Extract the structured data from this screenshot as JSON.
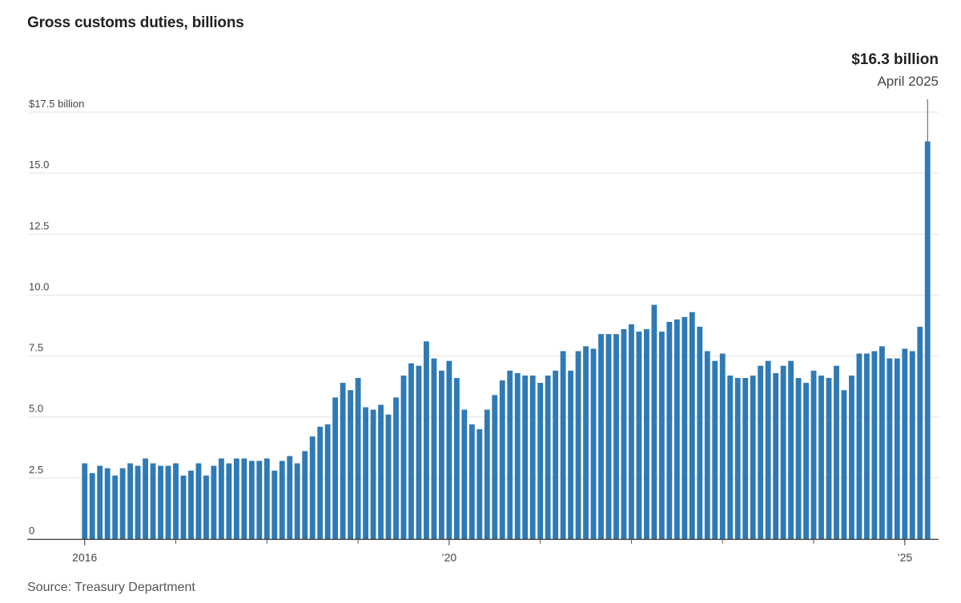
{
  "chart_data": {
    "type": "bar",
    "title": "Gross customs duties, billions",
    "source": "Source: Treasury Department",
    "color": "#2f7ab5",
    "start": "2016-01",
    "y_ticks": [
      {
        "value": 0,
        "label": "0"
      },
      {
        "value": 2.5,
        "label": "2.5"
      },
      {
        "value": 5.0,
        "label": "5.0"
      },
      {
        "value": 7.5,
        "label": "7.5"
      },
      {
        "value": 10.0,
        "label": "10.0"
      },
      {
        "value": 12.5,
        "label": "12.5"
      },
      {
        "value": 15.0,
        "label": "15.0"
      },
      {
        "value": 17.5,
        "label": "$17.5 billion"
      }
    ],
    "ylim": [
      0,
      17.5
    ],
    "x_ticks": [
      {
        "month": "2016-01",
        "label": "2016"
      },
      {
        "month": "2020-01",
        "label": "’20"
      },
      {
        "month": "2025-01",
        "label": "’25"
      }
    ],
    "annotation": {
      "value": "$16.3 billion",
      "label": "April 2025"
    },
    "values": [
      3.1,
      2.7,
      3.0,
      2.9,
      2.6,
      2.9,
      3.1,
      3.0,
      3.3,
      3.1,
      3.0,
      3.0,
      3.1,
      2.6,
      2.8,
      3.1,
      2.6,
      3.0,
      3.3,
      3.1,
      3.3,
      3.3,
      3.2,
      3.2,
      3.3,
      2.8,
      3.2,
      3.4,
      3.1,
      3.6,
      4.2,
      4.6,
      4.7,
      5.8,
      6.4,
      6.1,
      6.6,
      5.4,
      5.3,
      5.5,
      5.1,
      5.8,
      6.7,
      7.2,
      7.1,
      8.1,
      7.4,
      6.9,
      7.3,
      6.6,
      5.3,
      4.7,
      4.5,
      5.3,
      5.9,
      6.5,
      6.9,
      6.8,
      6.7,
      6.7,
      6.4,
      6.7,
      6.9,
      7.7,
      6.9,
      7.7,
      7.9,
      7.8,
      8.4,
      8.4,
      8.4,
      8.6,
      8.8,
      8.5,
      8.6,
      9.6,
      8.5,
      8.9,
      9.0,
      9.1,
      9.3,
      8.7,
      7.7,
      7.3,
      7.6,
      6.7,
      6.6,
      6.6,
      6.7,
      7.1,
      7.3,
      6.8,
      7.1,
      7.3,
      6.6,
      6.4,
      6.9,
      6.7,
      6.6,
      7.1,
      6.1,
      6.7,
      7.6,
      7.6,
      7.7,
      7.9,
      7.4,
      7.4,
      7.8,
      7.7,
      8.7,
      16.3
    ]
  }
}
